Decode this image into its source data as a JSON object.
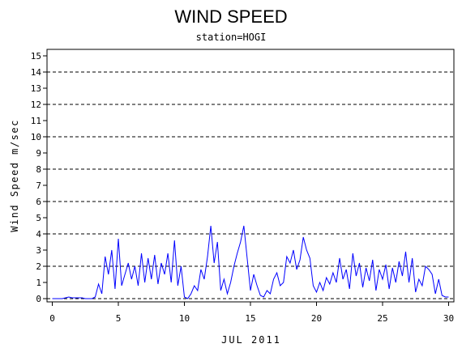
{
  "chart_data": {
    "type": "line",
    "title": "WIND SPEED",
    "subtitle": "station=HOGI",
    "x_label": "JUL 2011",
    "y_label": "Wind Speed m/sec",
    "color": "#0000ff",
    "x": [
      0,
      0.25,
      0.5,
      0.75,
      1,
      1.25,
      1.5,
      1.75,
      2,
      2.25,
      2.5,
      2.75,
      3,
      3.25,
      3.5,
      3.75,
      4,
      4.25,
      4.5,
      4.75,
      5,
      5.25,
      5.5,
      5.75,
      6,
      6.25,
      6.5,
      6.75,
      7,
      7.25,
      7.5,
      7.75,
      8,
      8.25,
      8.5,
      8.75,
      9,
      9.25,
      9.5,
      9.75,
      10,
      10.25,
      10.5,
      10.75,
      11,
      11.25,
      11.5,
      11.75,
      12,
      12.25,
      12.5,
      12.75,
      13,
      13.25,
      13.5,
      13.75,
      14,
      14.25,
      14.5,
      14.75,
      15,
      15.25,
      15.5,
      15.75,
      16,
      16.25,
      16.5,
      16.75,
      17,
      17.25,
      17.5,
      17.75,
      18,
      18.25,
      18.5,
      18.75,
      19,
      19.25,
      19.5,
      19.75,
      20,
      20.25,
      20.5,
      20.75,
      21,
      21.25,
      21.5,
      21.75,
      22,
      22.25,
      22.5,
      22.75,
      23,
      23.25,
      23.5,
      23.75,
      24,
      24.25,
      24.5,
      24.75,
      25,
      25.25,
      25.5,
      25.75,
      26,
      26.25,
      26.5,
      26.75,
      27,
      27.25,
      27.5,
      27.75,
      28,
      28.25,
      28.5,
      28.75,
      29,
      29.25,
      29.5,
      29.75,
      30
    ],
    "values": [
      0,
      0,
      0,
      0,
      0.05,
      0.1,
      0.05,
      0.05,
      0.05,
      0.05,
      0,
      0,
      0,
      0.1,
      0.9,
      0.3,
      2.6,
      1.5,
      3.0,
      0.6,
      3.7,
      0.8,
      1.5,
      2.2,
      1.2,
      2.0,
      0.8,
      2.8,
      1.0,
      2.5,
      1.2,
      2.7,
      0.9,
      2.2,
      1.5,
      2.8,
      1.0,
      3.6,
      0.8,
      2.0,
      0.1,
      0,
      0.3,
      0.8,
      0.5,
      1.8,
      1.2,
      2.6,
      4.5,
      2.2,
      3.5,
      0.5,
      1.2,
      0.3,
      1.0,
      2.0,
      2.8,
      3.5,
      4.5,
      2.5,
      0.5,
      1.5,
      0.8,
      0.2,
      0.1,
      0.5,
      0.3,
      1.2,
      1.6,
      0.8,
      1.0,
      2.6,
      2.2,
      3.0,
      1.8,
      2.4,
      3.8,
      3.0,
      2.5,
      0.8,
      0.4,
      1.0,
      0.5,
      1.3,
      0.9,
      1.6,
      1.0,
      2.5,
      1.2,
      1.8,
      0.6,
      2.8,
      1.4,
      2.2,
      0.7,
      1.9,
      1.1,
      2.4,
      0.5,
      1.8,
      1.2,
      2.1,
      0.6,
      1.9,
      1.0,
      2.3,
      1.4,
      2.9,
      1.0,
      2.5,
      0.4,
      1.2,
      0.8,
      2.0,
      1.8,
      1.5,
      0.3,
      1.2,
      0.2,
      0.1,
      0.1
    ],
    "xlim": [
      -0.4,
      30.4
    ],
    "xticks": [
      0,
      5,
      10,
      15,
      20,
      25,
      30
    ],
    "ylim": [
      -0.2,
      15.4
    ],
    "yticks": [
      0,
      1,
      2,
      3,
      4,
      5,
      6,
      7,
      8,
      9,
      10,
      11,
      12,
      13,
      14,
      15
    ],
    "grid_ticks": [
      0,
      2,
      4,
      6,
      8,
      10,
      12,
      14
    ]
  }
}
